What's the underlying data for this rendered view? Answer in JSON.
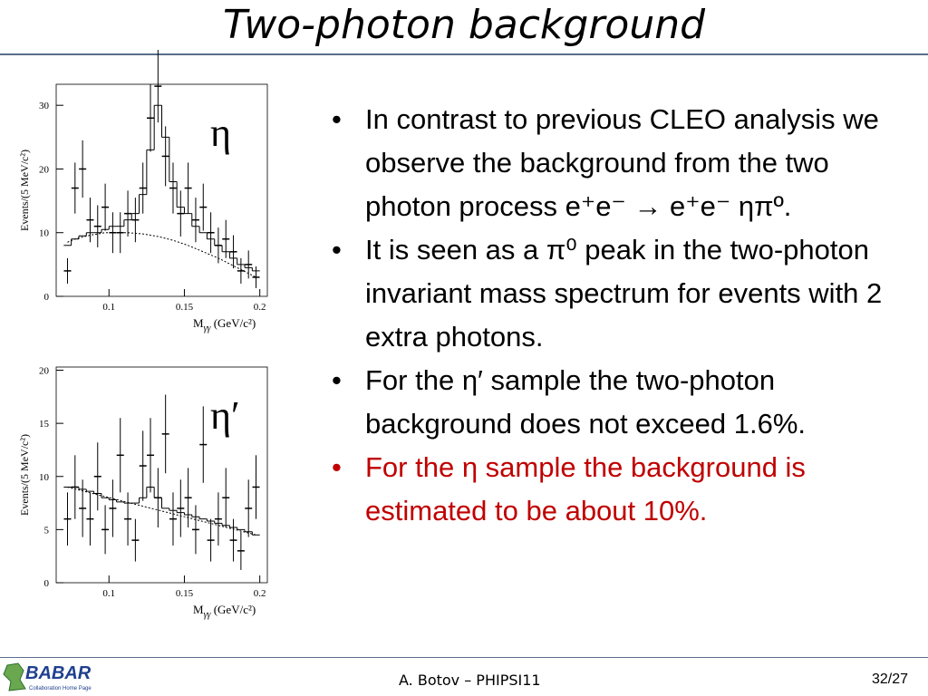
{
  "header": {
    "title": "Two-photon background"
  },
  "plots": [
    {
      "symbol": "η",
      "y_label": "Events/(5 MeV/c²)",
      "x_label": {
        "main": "M",
        "sub": "γγ",
        "rest": " (GeV/c²)"
      },
      "xlim": [
        0.065,
        0.205
      ],
      "xticks": [
        0.1,
        0.15,
        0.2
      ],
      "ylim": [
        0,
        33.3
      ],
      "yticks": [
        0,
        10,
        20,
        30
      ],
      "bins": [
        0.07,
        0.075,
        0.08,
        0.085,
        0.09,
        0.095,
        0.1,
        0.105,
        0.11,
        0.115,
        0.12,
        0.125,
        0.13,
        0.135,
        0.14,
        0.145,
        0.15,
        0.155,
        0.16,
        0.165,
        0.17,
        0.175,
        0.18,
        0.185,
        0.19,
        0.195,
        0.2
      ],
      "histogram": [
        8,
        9,
        9.5,
        10,
        10,
        10.5,
        11,
        11,
        12,
        13,
        16,
        23,
        30,
        25,
        18,
        14,
        13,
        11,
        10,
        9,
        8,
        7,
        6,
        5,
        4.5,
        4
      ],
      "points": [
        4,
        17,
        20,
        12,
        11,
        14,
        10,
        10,
        13,
        12,
        17,
        28,
        33,
        22,
        17,
        13,
        17,
        12,
        14,
        10,
        8,
        9,
        7,
        4,
        5,
        3
      ],
      "errors": [
        2,
        4,
        4.5,
        3.5,
        3.3,
        3.7,
        3.2,
        3.2,
        3.6,
        3.5,
        4,
        5.3,
        5.7,
        4.7,
        4,
        3.6,
        4,
        3.5,
        3.7,
        3.2,
        2.8,
        3,
        2.6,
        2,
        2.2,
        1.7
      ],
      "fit": [
        8.5,
        9,
        9.3,
        9.6,
        9.8,
        10,
        10,
        10,
        10,
        9.9,
        9.8,
        9.6,
        9.4,
        9.1,
        8.8,
        8.4,
        8,
        7.5,
        7,
        6.5,
        6,
        5.4,
        4.8,
        4.2,
        3.6,
        3
      ]
    },
    {
      "symbol": "η′",
      "y_label": "Events/(5 MeV/c²)",
      "x_label": {
        "main": "M",
        "sub": "γγ",
        "rest": " (GeV/c²)"
      },
      "xlim": [
        0.065,
        0.205
      ],
      "xticks": [
        0.1,
        0.15,
        0.2
      ],
      "ylim": [
        0,
        20.3
      ],
      "yticks": [
        0,
        5,
        10,
        15,
        20
      ],
      "bins": [
        0.07,
        0.075,
        0.08,
        0.085,
        0.09,
        0.095,
        0.1,
        0.105,
        0.11,
        0.115,
        0.12,
        0.125,
        0.13,
        0.135,
        0.14,
        0.145,
        0.15,
        0.155,
        0.16,
        0.165,
        0.17,
        0.175,
        0.18,
        0.185,
        0.19,
        0.195,
        0.2
      ],
      "histogram": [
        9,
        9,
        8.8,
        8.6,
        8.4,
        8,
        7.8,
        7.6,
        7.5,
        7.5,
        8,
        9,
        8,
        7,
        6.8,
        6.6,
        6.4,
        6.2,
        6,
        5.8,
        5.6,
        5.4,
        5.2,
        5,
        4.8,
        4.5
      ],
      "points": [
        6,
        9,
        7,
        6,
        10,
        5,
        7,
        12,
        6,
        4,
        11,
        12,
        8,
        14,
        6,
        7,
        8,
        5,
        13,
        4,
        6,
        8,
        4,
        3,
        7,
        9
      ],
      "errors": [
        2.5,
        3,
        2.7,
        2.5,
        3.2,
        2.3,
        2.7,
        3.5,
        2.5,
        2,
        3.3,
        3.5,
        2.8,
        3.7,
        2.5,
        2.7,
        2.8,
        2.3,
        3.6,
        2,
        2.5,
        2.8,
        2,
        1.8,
        2.7,
        3
      ],
      "fit": [
        9,
        8.82,
        8.64,
        8.46,
        8.28,
        8.1,
        7.92,
        7.74,
        7.56,
        7.38,
        7.2,
        7.02,
        6.84,
        6.66,
        6.48,
        6.3,
        6.12,
        5.94,
        5.76,
        5.58,
        5.4,
        5.22,
        5.04,
        4.86,
        4.68,
        4.5
      ]
    }
  ],
  "bullets": [
    {
      "text": "In contrast to previous CLEO analysis we observe the background from the two photon process e⁺e⁻ → e⁺e⁻ ηπº.",
      "color": "#000000"
    },
    {
      "text": "It is seen as a π⁰ peak in the two-photon invariant mass spectrum for events with 2 extra photons.",
      "color": "#000000"
    },
    {
      "text": "For the η′ sample the two-photon background does not exceed 1.6%.",
      "color": "#000000"
    },
    {
      "text": "For the η sample the background is estimated to be about 10%.",
      "color": "#c00000"
    }
  ],
  "logo": {
    "name": "BABAR",
    "caption": "Collaboration Home Page"
  },
  "footer": {
    "author": "A. Botov – PHIPSI11",
    "page": "32/27"
  }
}
